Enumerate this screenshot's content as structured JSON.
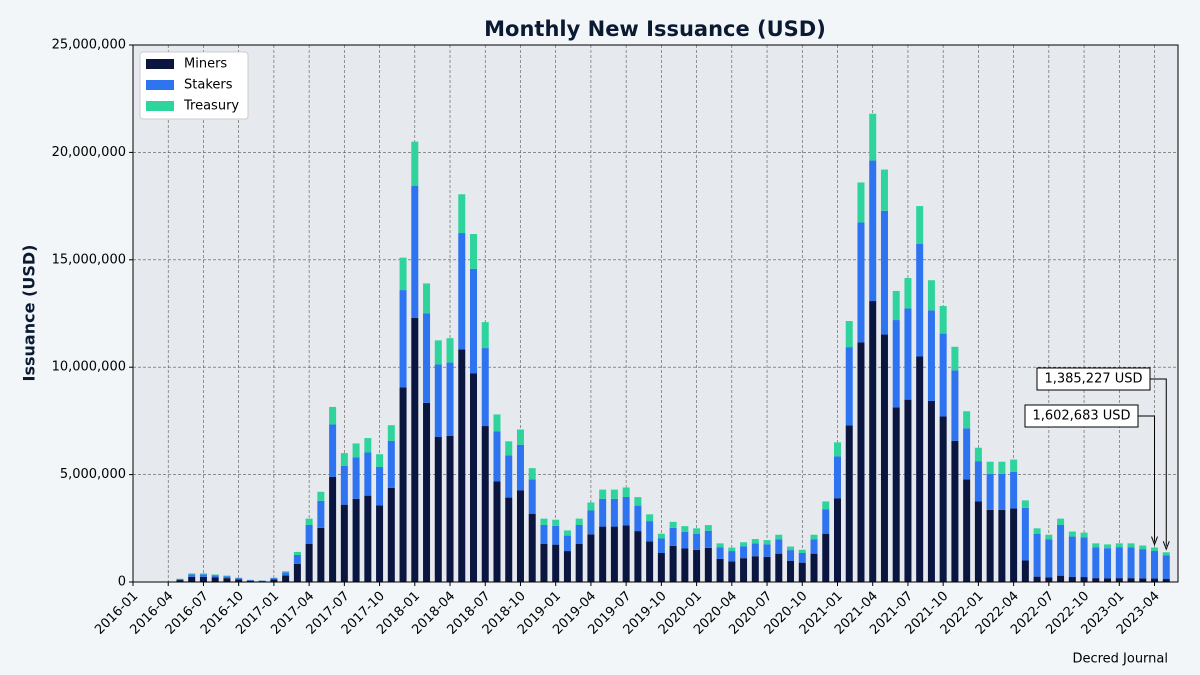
{
  "chart_data": {
    "type": "stacked_bar",
    "title": "Monthly New Issuance (USD)",
    "y_label": "Issuance (USD)",
    "source": "Decred Journal",
    "x": [
      "2016-05",
      "2016-06",
      "2016-07",
      "2016-08",
      "2016-09",
      "2016-10",
      "2016-11",
      "2016-12",
      "2017-01",
      "2017-02",
      "2017-03",
      "2017-04",
      "2017-05",
      "2017-06",
      "2017-07",
      "2017-08",
      "2017-09",
      "2017-10",
      "2017-11",
      "2017-12",
      "2018-01",
      "2018-02",
      "2018-03",
      "2018-04",
      "2018-05",
      "2018-06",
      "2018-07",
      "2018-08",
      "2018-09",
      "2018-10",
      "2018-11",
      "2018-12",
      "2019-01",
      "2019-02",
      "2019-03",
      "2019-04",
      "2019-05",
      "2019-06",
      "2019-07",
      "2019-08",
      "2019-09",
      "2019-10",
      "2019-11",
      "2019-12",
      "2020-01",
      "2020-02",
      "2020-03",
      "2020-04",
      "2020-05",
      "2020-06",
      "2020-07",
      "2020-08",
      "2020-09",
      "2020-10",
      "2020-11",
      "2020-12",
      "2021-01",
      "2021-02",
      "2021-03",
      "2021-04",
      "2021-05",
      "2021-06",
      "2021-07",
      "2021-08",
      "2021-09",
      "2021-10",
      "2021-11",
      "2021-12",
      "2022-01",
      "2022-02",
      "2022-03",
      "2022-04",
      "2022-05",
      "2022-06",
      "2022-07",
      "2022-08",
      "2022-09",
      "2022-10",
      "2022-11",
      "2022-12",
      "2023-01",
      "2023-02",
      "2023-03",
      "2023-04",
      "2023-05"
    ],
    "series": [
      {
        "name": "Miners",
        "color": "#0b1640",
        "values": [
          90000,
          240000,
          240000,
          210000,
          180000,
          120000,
          60000,
          42000,
          120000,
          300000,
          840000,
          1770000,
          2520000,
          4890000,
          3600000,
          3870000,
          4020000,
          3570000,
          4380000,
          9060000,
          12300000,
          8340000,
          6750000,
          6810000,
          10830000,
          9720000,
          7260000,
          4680000,
          3930000,
          4260000,
          3180000,
          1770000,
          1740000,
          1440000,
          1770000,
          2220000,
          2580000,
          2580000,
          2640000,
          2370000,
          1890000,
          1350000,
          1680000,
          1560000,
          1500000,
          1590000,
          1080000,
          960000,
          1110000,
          1200000,
          1170000,
          1320000,
          990000,
          900000,
          1320000,
          2250000,
          3900000,
          7290000,
          11160000,
          13080000,
          11520000,
          8130000,
          8490000,
          10500000,
          8430000,
          7710000,
          6570000,
          4770000,
          3750000,
          3360000,
          3360000,
          3420000,
          1000000,
          250000,
          220000,
          295000,
          235000,
          230000,
          180000,
          175000,
          180000,
          180000,
          170000,
          160268,
          138523
        ]
      },
      {
        "name": "Stakers",
        "color": "#2e73f0",
        "values": [
          45000,
          120000,
          120000,
          105000,
          90000,
          60000,
          30000,
          21000,
          60000,
          150000,
          420000,
          885000,
          1260000,
          2445000,
          1800000,
          1935000,
          2010000,
          1785000,
          2190000,
          4530000,
          6150000,
          4170000,
          3375000,
          3405000,
          5415000,
          4860000,
          3630000,
          2340000,
          1965000,
          2130000,
          1590000,
          885000,
          870000,
          720000,
          885000,
          1110000,
          1290000,
          1290000,
          1320000,
          1185000,
          945000,
          675000,
          840000,
          780000,
          750000,
          795000,
          540000,
          480000,
          555000,
          600000,
          585000,
          660000,
          495000,
          450000,
          660000,
          1125000,
          1950000,
          3645000,
          5580000,
          6540000,
          5760000,
          4065000,
          4245000,
          5250000,
          4215000,
          3855000,
          3285000,
          2385000,
          1875000,
          1680000,
          1680000,
          1710000,
          2450000,
          2000000,
          1760000,
          2360000,
          1880000,
          1840000,
          1440000,
          1400000,
          1440000,
          1440000,
          1360000,
          1282146,
          1108181
        ]
      },
      {
        "name": "Treasury",
        "color": "#2fd49c",
        "values": [
          15000,
          40000,
          40000,
          35000,
          30000,
          20000,
          10000,
          7000,
          20000,
          50000,
          140000,
          295000,
          420000,
          815000,
          600000,
          645000,
          670000,
          595000,
          730000,
          1510000,
          2050000,
          1390000,
          1125000,
          1135000,
          1805000,
          1620000,
          1210000,
          780000,
          655000,
          710000,
          530000,
          295000,
          290000,
          240000,
          295000,
          370000,
          430000,
          430000,
          440000,
          395000,
          315000,
          225000,
          280000,
          260000,
          250000,
          265000,
          180000,
          160000,
          185000,
          200000,
          195000,
          220000,
          165000,
          150000,
          220000,
          375000,
          650000,
          1215000,
          1860000,
          2180000,
          1920000,
          1355000,
          1415000,
          1750000,
          1405000,
          1285000,
          1095000,
          795000,
          625000,
          560000,
          560000,
          570000,
          350000,
          250000,
          220000,
          295000,
          235000,
          230000,
          180000,
          175000,
          180000,
          180000,
          170000,
          160268,
          138523
        ]
      }
    ],
    "xlim": [
      "2016-01",
      "2023-06"
    ],
    "xticks": [
      "2016-01",
      "2016-04",
      "2016-07",
      "2016-10",
      "2017-01",
      "2017-04",
      "2017-07",
      "2017-10",
      "2018-01",
      "2018-04",
      "2018-07",
      "2018-10",
      "2019-01",
      "2019-04",
      "2019-07",
      "2019-10",
      "2020-01",
      "2020-04",
      "2020-07",
      "2020-10",
      "2021-01",
      "2021-04",
      "2021-07",
      "2021-10",
      "2022-01",
      "2022-04",
      "2022-07",
      "2022-10",
      "2023-01",
      "2023-04"
    ],
    "ylim": [
      0,
      25000000
    ],
    "yticks": [
      0,
      {
        "value": 5000000,
        "label": "5,000,000"
      },
      {
        "value": 10000000,
        "label": "10,000,000"
      },
      {
        "value": 15000000,
        "label": "15,000,000"
      },
      {
        "value": 20000000,
        "label": "20,000,000"
      },
      {
        "value": 25000000,
        "label": "25,000,000"
      }
    ],
    "grid": true,
    "legend": "upper left",
    "annotations": [
      {
        "text": "1,385,227 USD"
      },
      {
        "text": "1,602,683 USD"
      }
    ]
  }
}
